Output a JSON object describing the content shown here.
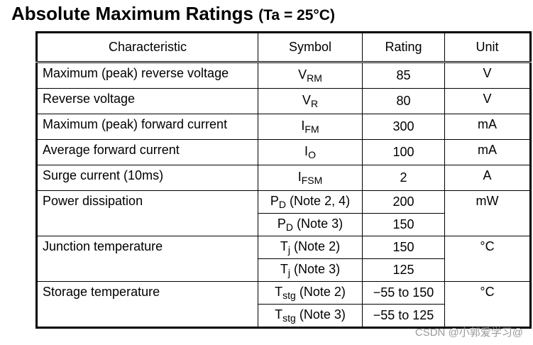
{
  "header": {
    "title": "Absolute Maximum Ratings",
    "condition": "(Ta = 25°C)"
  },
  "table": {
    "columns": [
      "Characteristic",
      "Symbol",
      "Rating",
      "Unit"
    ],
    "rows": [
      {
        "characteristic": "Maximum (peak) reverse voltage",
        "unit": "V",
        "entries": [
          {
            "symbol": {
              "base": "V",
              "sub": "RM"
            },
            "rating": 85
          }
        ]
      },
      {
        "characteristic": "Reverse voltage",
        "unit": "V",
        "entries": [
          {
            "symbol": {
              "base": "V",
              "sub": "R"
            },
            "rating": 80
          }
        ]
      },
      {
        "characteristic": "Maximum (peak) forward current",
        "unit": "mA",
        "entries": [
          {
            "symbol": {
              "base": "I",
              "sub": "FM"
            },
            "rating": 300
          }
        ]
      },
      {
        "characteristic": "Average forward current",
        "unit": "mA",
        "entries": [
          {
            "symbol": {
              "base": "I",
              "sub": "O"
            },
            "rating": 100
          }
        ]
      },
      {
        "characteristic": "Surge current (10ms)",
        "unit": "A",
        "entries": [
          {
            "symbol": {
              "base": "I",
              "sub": "FSM"
            },
            "rating": 2
          }
        ]
      },
      {
        "characteristic": "Power dissipation",
        "unit": "mW",
        "entries": [
          {
            "symbol": {
              "base": "P",
              "sub": "D",
              "note": "(Note 2, 4)"
            },
            "rating": 200
          },
          {
            "symbol": {
              "base": "P",
              "sub": "D",
              "note": "(Note 3)"
            },
            "rating": 150
          }
        ]
      },
      {
        "characteristic": "Junction temperature",
        "unit": "°C",
        "entries": [
          {
            "symbol": {
              "base": "T",
              "sub": "j",
              "note": "(Note 2)"
            },
            "rating": 150
          },
          {
            "symbol": {
              "base": "T",
              "sub": "j",
              "note": "(Note 3)"
            },
            "rating": 125
          }
        ]
      },
      {
        "characteristic": "Storage temperature",
        "unit": "°C",
        "entries": [
          {
            "symbol": {
              "base": "T",
              "sub": "stg",
              "note": "(Note 2)"
            },
            "rating": "−55 to 150"
          },
          {
            "symbol": {
              "base": "T",
              "sub": "stg",
              "note": "(Note 3)"
            },
            "rating": "−55 to 125"
          }
        ]
      }
    ]
  },
  "watermark": "CSDN @小郭爱学习@"
}
